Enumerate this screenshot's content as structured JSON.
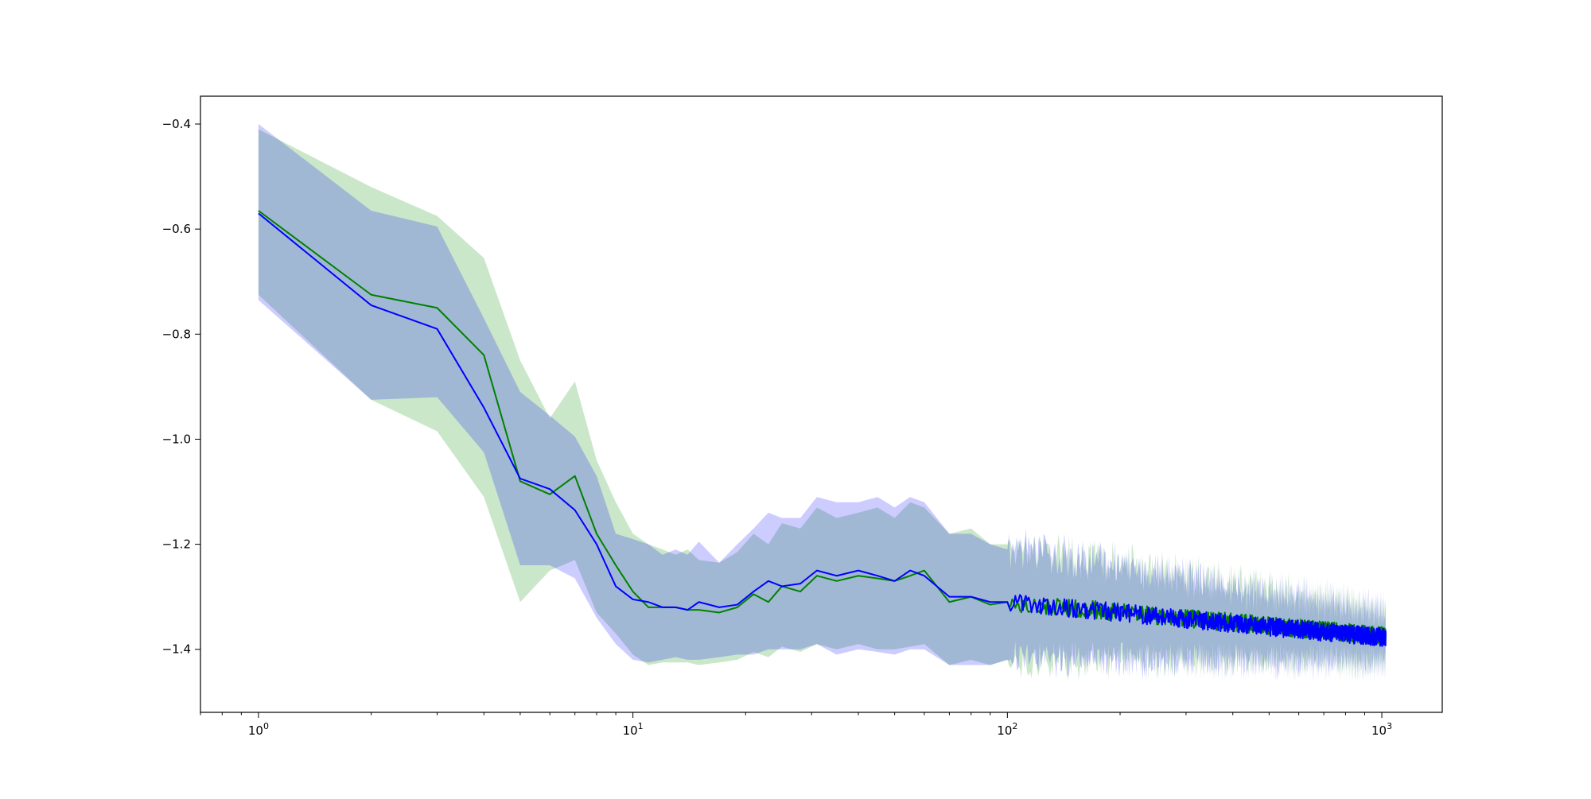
{
  "chart_data": {
    "type": "line",
    "title": "",
    "xlabel": "",
    "ylabel": "",
    "xscale": "log",
    "xlim": [
      0.7,
      1450
    ],
    "ylim": [
      -1.52,
      -0.347
    ],
    "grid": false,
    "legend": "none",
    "x_ticks": [
      {
        "value": 1,
        "base": "10",
        "exp": "0"
      },
      {
        "value": 10,
        "base": "10",
        "exp": "1"
      },
      {
        "value": 100,
        "base": "10",
        "exp": "2"
      },
      {
        "value": 1000,
        "base": "10",
        "exp": "3"
      }
    ],
    "y_ticks": [
      {
        "value": -0.4,
        "label": "−0.4"
      },
      {
        "value": -0.6,
        "label": "−0.6"
      },
      {
        "value": -0.8,
        "label": "−0.8"
      },
      {
        "value": -1.0,
        "label": "−1.0"
      },
      {
        "value": -1.2,
        "label": "−1.2"
      },
      {
        "value": -1.4,
        "label": "−1.4"
      }
    ],
    "series": [
      {
        "color": "#008000",
        "band_color": "#2ca02c",
        "band_opacity": 0.25,
        "x": [
          1,
          2,
          3,
          4,
          5,
          6,
          7,
          8,
          9,
          10,
          11,
          12,
          13,
          14,
          15,
          17,
          19,
          21,
          23,
          25,
          28,
          31,
          35,
          40,
          45,
          50,
          55,
          60,
          70,
          80,
          90,
          100
        ],
        "mean": [
          -0.565,
          -0.725,
          -0.75,
          -0.84,
          -1.08,
          -1.105,
          -1.07,
          -1.18,
          -1.24,
          -1.29,
          -1.32,
          -1.32,
          -1.32,
          -1.325,
          -1.325,
          -1.33,
          -1.32,
          -1.295,
          -1.31,
          -1.28,
          -1.29,
          -1.26,
          -1.27,
          -1.26,
          -1.265,
          -1.27,
          -1.26,
          -1.25,
          -1.31,
          -1.3,
          -1.315,
          -1.31
        ],
        "upper": [
          -0.41,
          -0.52,
          -0.575,
          -0.655,
          -0.85,
          -0.96,
          -0.89,
          -1.04,
          -1.12,
          -1.18,
          -1.2,
          -1.21,
          -1.22,
          -1.21,
          -1.23,
          -1.235,
          -1.215,
          -1.18,
          -1.2,
          -1.16,
          -1.17,
          -1.13,
          -1.15,
          -1.14,
          -1.13,
          -1.15,
          -1.12,
          -1.13,
          -1.18,
          -1.17,
          -1.2,
          -1.2
        ],
        "lower": [
          -0.725,
          -0.925,
          -0.985,
          -1.11,
          -1.31,
          -1.25,
          -1.23,
          -1.33,
          -1.37,
          -1.41,
          -1.43,
          -1.425,
          -1.425,
          -1.425,
          -1.43,
          -1.425,
          -1.42,
          -1.405,
          -1.415,
          -1.395,
          -1.405,
          -1.39,
          -1.4,
          -1.39,
          -1.4,
          -1.4,
          -1.395,
          -1.39,
          -1.43,
          -1.42,
          -1.43,
          -1.42
        ],
        "tail": {
          "x_start": 100,
          "x_end": 1024,
          "mean_start": -1.31,
          "mean_end": -1.375,
          "half_width_start": 0.11,
          "half_width_end": 0.05
        }
      },
      {
        "color": "#0000ff",
        "band_color": "#0000ff",
        "band_opacity": 0.2,
        "x": [
          1,
          2,
          3,
          4,
          5,
          6,
          7,
          8,
          9,
          10,
          11,
          12,
          13,
          14,
          15,
          17,
          19,
          21,
          23,
          25,
          28,
          31,
          35,
          40,
          45,
          50,
          55,
          60,
          70,
          80,
          90,
          100
        ],
        "mean": [
          -0.57,
          -0.745,
          -0.79,
          -0.94,
          -1.075,
          -1.095,
          -1.135,
          -1.2,
          -1.28,
          -1.305,
          -1.31,
          -1.32,
          -1.32,
          -1.325,
          -1.31,
          -1.32,
          -1.315,
          -1.29,
          -1.27,
          -1.28,
          -1.275,
          -1.25,
          -1.26,
          -1.25,
          -1.26,
          -1.27,
          -1.25,
          -1.26,
          -1.3,
          -1.3,
          -1.31,
          -1.31
        ],
        "upper": [
          -0.4,
          -0.565,
          -0.595,
          -0.77,
          -0.91,
          -0.955,
          -0.995,
          -1.07,
          -1.18,
          -1.19,
          -1.2,
          -1.22,
          -1.21,
          -1.22,
          -1.195,
          -1.235,
          -1.2,
          -1.17,
          -1.14,
          -1.15,
          -1.15,
          -1.11,
          -1.12,
          -1.12,
          -1.11,
          -1.13,
          -1.11,
          -1.12,
          -1.18,
          -1.18,
          -1.2,
          -1.21
        ],
        "lower": [
          -0.735,
          -0.925,
          -0.92,
          -1.025,
          -1.24,
          -1.24,
          -1.265,
          -1.34,
          -1.39,
          -1.42,
          -1.425,
          -1.42,
          -1.415,
          -1.42,
          -1.42,
          -1.415,
          -1.41,
          -1.41,
          -1.4,
          -1.4,
          -1.4,
          -1.39,
          -1.41,
          -1.4,
          -1.405,
          -1.41,
          -1.4,
          -1.4,
          -1.43,
          -1.43,
          -1.43,
          -1.42
        ],
        "tail": {
          "x_start": 100,
          "x_end": 1024,
          "mean_start": -1.31,
          "mean_end": -1.378,
          "half_width_start": 0.11,
          "half_width_end": 0.05
        }
      }
    ]
  }
}
